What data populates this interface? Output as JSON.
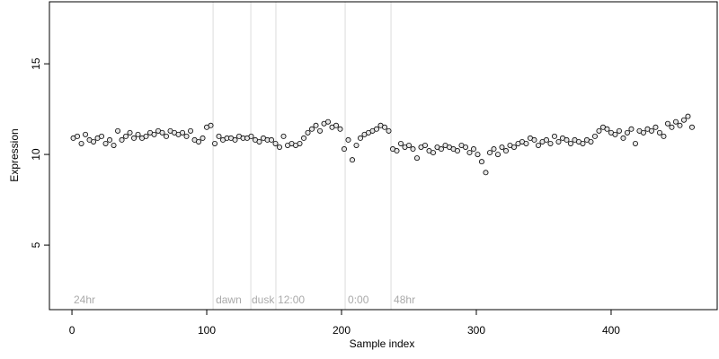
{
  "chart_data": {
    "type": "scatter",
    "xlabel": "Sample index",
    "ylabel": "Expression",
    "xlim": [
      -16.7,
      478.7
    ],
    "ylim": [
      1.44,
      18.42
    ],
    "xticks": [
      0,
      100,
      200,
      300,
      400
    ],
    "yticks": [
      5,
      10,
      15
    ],
    "vlines": [
      104.7,
      132.7,
      151.3,
      202.7,
      236.7
    ],
    "annotations": [
      {
        "x": 1.3,
        "label": "24hr"
      },
      {
        "x": 106.7,
        "label": "dawn"
      },
      {
        "x": 133.3,
        "label": "dusk"
      },
      {
        "x": 152.7,
        "label": "12:00"
      },
      {
        "x": 204.7,
        "label": "0:00"
      },
      {
        "x": 238.7,
        "label": "48hr"
      }
    ],
    "color": "#e6e6e6",
    "x": [
      1,
      4,
      7,
      10,
      13,
      16,
      19,
      22,
      25,
      28,
      31,
      34,
      37,
      40,
      43,
      46,
      49,
      52,
      55,
      58,
      61,
      64,
      67,
      70,
      73,
      76,
      79,
      82,
      85,
      88,
      91,
      94,
      97,
      100,
      103,
      106,
      109,
      112,
      115,
      118,
      121,
      124,
      127,
      130,
      133,
      136,
      139,
      142,
      145,
      148,
      151,
      154,
      157,
      160,
      163,
      166,
      169,
      172,
      175,
      178,
      181,
      184,
      187,
      190,
      193,
      196,
      199,
      202,
      205,
      208,
      211,
      214,
      217,
      220,
      223,
      226,
      229,
      232,
      235,
      238,
      241,
      244,
      247,
      250,
      253,
      256,
      259,
      262,
      265,
      268,
      271,
      274,
      277,
      280,
      283,
      286,
      289,
      292,
      295,
      298,
      301,
      304,
      307,
      310,
      313,
      316,
      319,
      322,
      325,
      328,
      331,
      334,
      337,
      340,
      343,
      346,
      349,
      352,
      355,
      358,
      361,
      364,
      367,
      370,
      373,
      376,
      379,
      382,
      385,
      388,
      391,
      394,
      397,
      400,
      403,
      406,
      409,
      412,
      415,
      418,
      421,
      424,
      427,
      430,
      433,
      436,
      439,
      442,
      445,
      448,
      451,
      454,
      457,
      460
    ],
    "values": [
      10.9,
      11.0,
      10.6,
      11.1,
      10.8,
      10.7,
      10.9,
      11.0,
      10.6,
      10.8,
      10.5,
      11.3,
      10.8,
      11.0,
      11.2,
      10.9,
      11.1,
      10.9,
      11.0,
      11.2,
      11.1,
      11.3,
      11.2,
      11.0,
      11.3,
      11.2,
      11.1,
      11.2,
      11.0,
      11.3,
      10.8,
      10.7,
      10.9,
      11.5,
      11.6,
      10.6,
      11.0,
      10.8,
      10.9,
      10.9,
      10.8,
      11.0,
      10.9,
      10.9,
      11.0,
      10.8,
      10.7,
      10.9,
      10.8,
      10.8,
      10.6,
      10.4,
      11.0,
      10.5,
      10.6,
      10.5,
      10.6,
      10.9,
      11.2,
      11.4,
      11.6,
      11.3,
      11.7,
      11.8,
      11.5,
      11.6,
      11.4,
      10.3,
      10.8,
      9.7,
      10.5,
      10.9,
      11.1,
      11.2,
      11.3,
      11.4,
      11.6,
      11.5,
      11.3,
      10.3,
      10.2,
      10.6,
      10.4,
      10.5,
      10.3,
      9.8,
      10.4,
      10.5,
      10.2,
      10.1,
      10.4,
      10.3,
      10.5,
      10.4,
      10.3,
      10.2,
      10.5,
      10.4,
      10.1,
      10.3,
      10.0,
      9.6,
      9.0,
      10.1,
      10.3,
      10.0,
      10.4,
      10.2,
      10.5,
      10.4,
      10.6,
      10.7,
      10.6,
      10.9,
      10.8,
      10.5,
      10.7,
      10.8,
      10.6,
      11.0,
      10.7,
      10.9,
      10.8,
      10.6,
      10.8,
      10.7,
      10.6,
      10.8,
      10.7,
      11.0,
      11.3,
      11.5,
      11.4,
      11.2,
      11.1,
      11.3,
      10.9,
      11.2,
      11.4,
      10.6,
      11.3,
      11.2,
      11.4,
      11.3,
      11.5,
      11.2,
      11.0,
      11.7,
      11.5,
      11.8,
      11.6,
      11.9,
      12.1,
      11.5
    ]
  }
}
